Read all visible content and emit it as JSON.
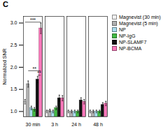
{
  "chart_data": {
    "type": "bar",
    "title": "C",
    "ylabel": "Normalized SNR",
    "categories": [
      "30 min",
      "3 h",
      "24 h",
      "48 h"
    ],
    "series": [
      {
        "name": "Magnevist (30 min)",
        "color": "#f0f0f0",
        "values": [
          1.22,
          1.0,
          1.0,
          1.0
        ],
        "errors": [
          0.05,
          0.03,
          0.03,
          0.03
        ]
      },
      {
        "name": "Magnevist (5 min)",
        "color": "#b0b0b0",
        "values": [
          1.62,
          1.02,
          1.0,
          1.0
        ],
        "errors": [
          0.07,
          0.03,
          0.03,
          0.03
        ]
      },
      {
        "name": "NP",
        "color": "#aaddee",
        "values": [
          1.08,
          1.0,
          1.0,
          1.0
        ],
        "errors": [
          0.04,
          0.03,
          0.03,
          0.03
        ]
      },
      {
        "name": "NP-IgG",
        "color": "#44bb44",
        "values": [
          1.05,
          1.08,
          1.0,
          1.0
        ],
        "errors": [
          0.04,
          0.04,
          0.03,
          0.03
        ]
      },
      {
        "name": "NP-SLAMF7",
        "color": "#111111",
        "values": [
          1.72,
          1.3,
          1.25,
          1.15
        ],
        "errors": [
          0.07,
          0.07,
          0.06,
          0.05
        ]
      },
      {
        "name": "NP-BCMA",
        "color": "#ff77bb",
        "values": [
          2.88,
          1.3,
          1.22,
          1.18
        ],
        "errors": [
          0.12,
          0.06,
          0.05,
          0.05
        ]
      }
    ],
    "ylim": [
      0.88,
      3.15
    ],
    "yticks": [
      {
        "value": 1.0,
        "label": "1.0"
      },
      1.5,
      {
        "value": 2.0,
        "label": "2.0"
      },
      2.5,
      {
        "value": 3.0,
        "label": "3.0"
      }
    ],
    "grid": false,
    "legend": "right",
    "annotations": [
      {
        "text": "***",
        "category": "30 min",
        "from": "Magnevist (30 min)",
        "to": "NP-BCMA",
        "y": 3.02
      },
      {
        "text": "**",
        "category": "30 min",
        "from": "Magnevist (5 min)",
        "to": "NP-BCMA",
        "y": 1.92
      },
      {
        "text": "**",
        "category": "30 min",
        "from": "NP-SLAMF7",
        "to": "NP-BCMA",
        "y": 1.82
      }
    ]
  }
}
